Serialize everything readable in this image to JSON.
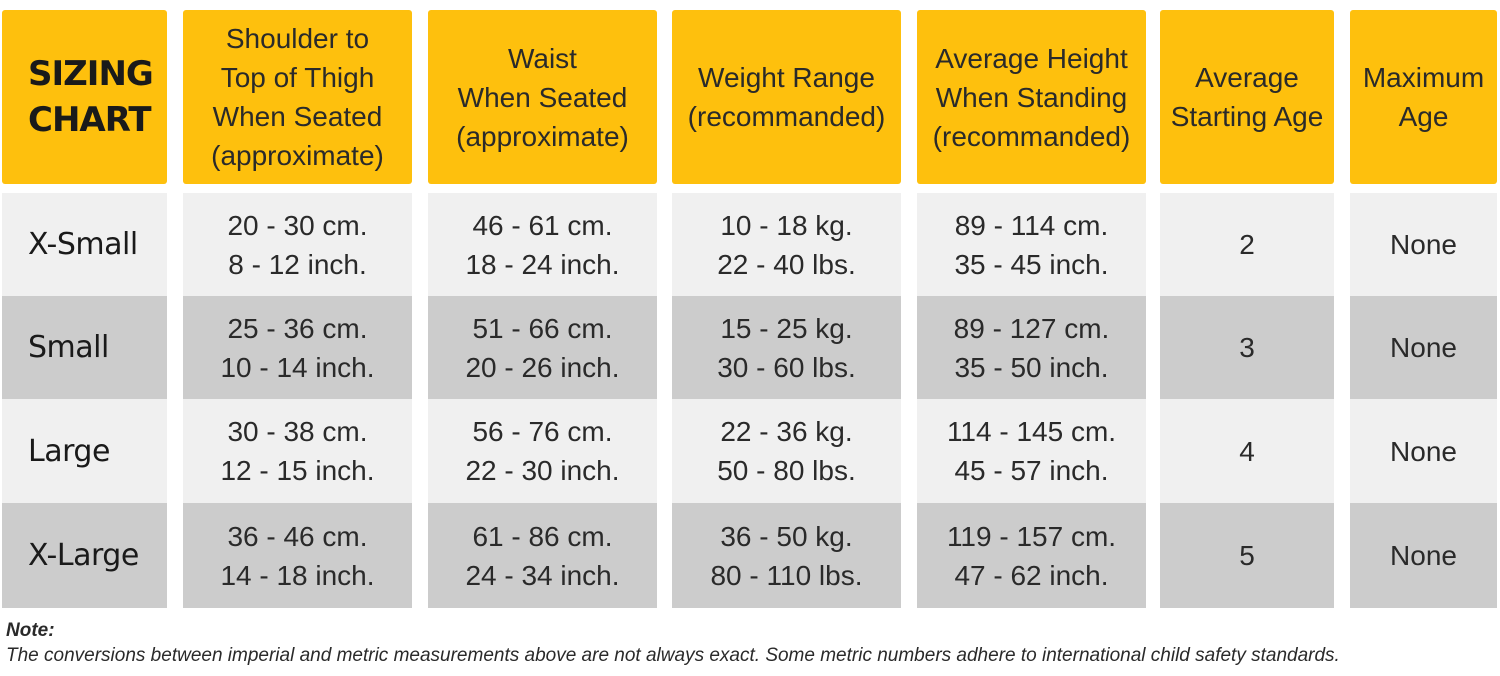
{
  "title": "SIZING\nCHART",
  "headers": [
    "Shoulder to\nTop of Thigh\nWhen Seated\n(approximate)",
    "Waist\nWhen Seated\n(approximate)",
    "Weight Range\n(recommanded)",
    "Average Height\nWhen Standing\n(recommanded)",
    "Average\nStarting Age",
    "Maximum\nAge"
  ],
  "rows": [
    {
      "size": "X-Small",
      "shoulder": "20 - 30 cm.\n8 - 12 inch.",
      "waist": "46 - 61 cm.\n18 - 24 inch.",
      "weight": "10 - 18 kg.\n22 - 40 lbs.",
      "height": "89 - 114 cm.\n35 - 45 inch.",
      "start_age": "2",
      "max_age": "None"
    },
    {
      "size": "Small",
      "shoulder": "25 - 36 cm.\n10 - 14 inch.",
      "waist": "51 - 66 cm.\n20 - 26 inch.",
      "weight": "15 - 25 kg.\n30 - 60 lbs.",
      "height": "89 - 127 cm.\n35 - 50 inch.",
      "start_age": "3",
      "max_age": "None"
    },
    {
      "size": "Large",
      "shoulder": "30 - 38 cm.\n12 - 15 inch.",
      "waist": "56 - 76 cm.\n22 - 30 inch.",
      "weight": "22 - 36 kg.\n50 - 80 lbs.",
      "height": "114 - 145 cm.\n45 - 57 inch.",
      "start_age": "4",
      "max_age": "None"
    },
    {
      "size": "X-Large",
      "shoulder": "36 - 46 cm.\n14 - 18 inch.",
      "waist": "61 - 86 cm.\n24 - 34 inch.",
      "weight": "36 - 50 kg.\n80 - 110 lbs.",
      "height": "119 - 157 cm.\n47 - 62 inch.",
      "start_age": "5",
      "max_age": "None"
    }
  ],
  "note": {
    "label": "Note:",
    "text": "The conversions between imperial and metric measurements above are not always exact. Some metric numbers adhere to international child safety standards."
  },
  "colors": {
    "header": "#fec00d",
    "row_light": "#f0f0f0",
    "row_dark": "#cccccc"
  }
}
